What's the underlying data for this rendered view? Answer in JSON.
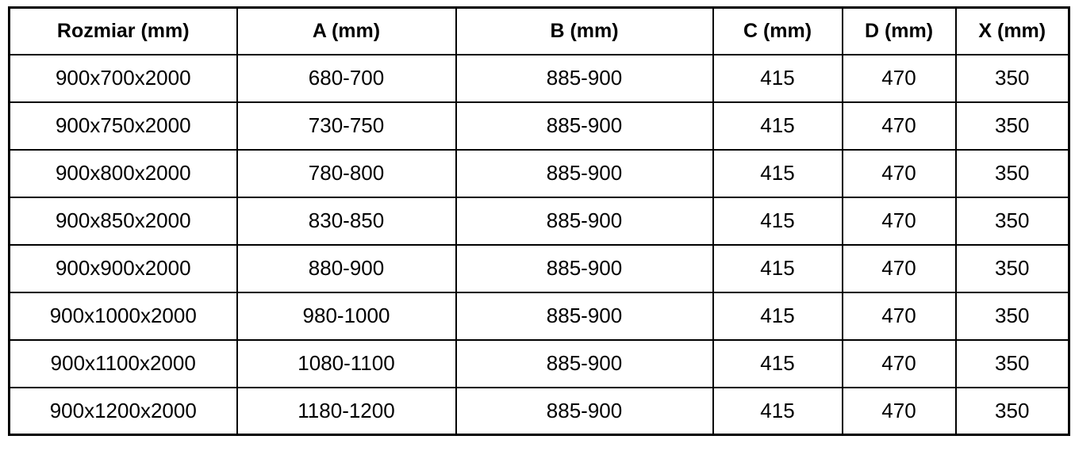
{
  "page": {
    "background_color": "#ffffff"
  },
  "table": {
    "border_color": "#000000",
    "text_color": "#000000",
    "columns": [
      "Rozmiar (mm)",
      "A (mm)",
      "B (mm)",
      "C (mm)",
      "D (mm)",
      "X (mm)"
    ],
    "rows": [
      [
        "900x700x2000",
        "680-700",
        "885-900",
        "415",
        "470",
        "350"
      ],
      [
        "900x750x2000",
        "730-750",
        "885-900",
        "415",
        "470",
        "350"
      ],
      [
        "900x800x2000",
        "780-800",
        "885-900",
        "415",
        "470",
        "350"
      ],
      [
        "900x850x2000",
        "830-850",
        "885-900",
        "415",
        "470",
        "350"
      ],
      [
        "900x900x2000",
        "880-900",
        "885-900",
        "415",
        "470",
        "350"
      ],
      [
        "900x1000x2000",
        "980-1000",
        "885-900",
        "415",
        "470",
        "350"
      ],
      [
        "900x1100x2000",
        "1080-1100",
        "885-900",
        "415",
        "470",
        "350"
      ],
      [
        "900x1200x2000",
        "1180-1200",
        "885-900",
        "415",
        "470",
        "350"
      ]
    ]
  }
}
